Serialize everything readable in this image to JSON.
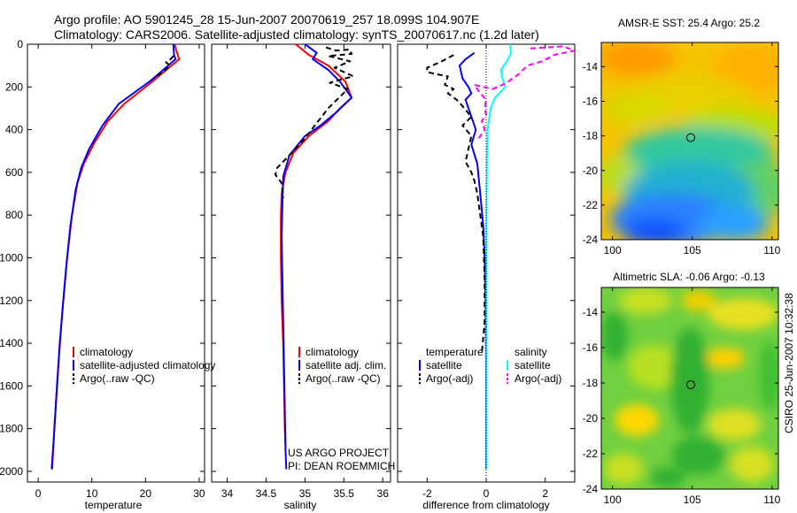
{
  "header": {
    "line1": "Argo profile: AO 5901245_28 15-Jun-2007 20070619_257 18.099S 104.907E",
    "line2": "Climatology: CARS2006. Satellite-adjusted climatology: synTS_20070617.nc (1.2d later)"
  },
  "side_label": "CSIRO 25-Jun-2007 10:32:38",
  "colors": {
    "climatology": "#ff0000",
    "satellite": "#0000ff",
    "argo": "#000000",
    "sal_satellite": "#00ffff",
    "sal_argo": "#ff00ff"
  },
  "chart_data": [
    {
      "id": "temperature",
      "type": "line",
      "xlabel": "temperature",
      "xlim": [
        -2,
        31
      ],
      "ylim": [
        2050,
        0
      ],
      "xticks": [
        0,
        10,
        20,
        30
      ],
      "yticks": [
        0,
        200,
        400,
        600,
        800,
        1000,
        1200,
        1400,
        1600,
        1800,
        2000
      ],
      "legend": [
        "climatology",
        "satellite-adjusted climatology",
        "Argo(..raw -QC)"
      ],
      "series": [
        {
          "name": "climatology",
          "style": "solid",
          "color": "#ff0000",
          "points": [
            [
              25.4,
              0
            ],
            [
              26.0,
              50
            ],
            [
              26.3,
              70
            ],
            [
              21,
              180
            ],
            [
              16,
              280
            ],
            [
              13,
              360
            ],
            [
              10.5,
              460
            ],
            [
              8.5,
              560
            ],
            [
              7.3,
              650
            ],
            [
              6.3,
              800
            ],
            [
              5.4,
              1000
            ],
            [
              4.7,
              1200
            ],
            [
              4.0,
              1400
            ],
            [
              3.5,
              1600
            ],
            [
              3.0,
              1800
            ],
            [
              2.6,
              1990
            ]
          ]
        },
        {
          "name": "satellite-adjusted climatology",
          "style": "solid",
          "color": "#0000ff",
          "points": [
            [
              25.2,
              0
            ],
            [
              25.3,
              50
            ],
            [
              25.6,
              70
            ],
            [
              21,
              170
            ],
            [
              15,
              280
            ],
            [
              12,
              380
            ],
            [
              9.5,
              490
            ],
            [
              8,
              580
            ],
            [
              7.0,
              680
            ],
            [
              6.0,
              850
            ],
            [
              5.2,
              1050
            ],
            [
              4.5,
              1250
            ],
            [
              3.9,
              1450
            ],
            [
              3.4,
              1650
            ],
            [
              2.9,
              1850
            ],
            [
              2.5,
              1990
            ]
          ]
        },
        {
          "name": "Argo(..raw -QC)",
          "style": "dashed",
          "color": "#000000",
          "points": [
            [
              25.2,
              55
            ],
            [
              24.5,
              75
            ],
            [
              23.8,
              85
            ],
            [
              24.6,
              100
            ],
            [
              23.5,
              125
            ],
            [
              22,
              150
            ]
          ]
        }
      ]
    },
    {
      "id": "salinity",
      "type": "line",
      "xlabel": "salinity",
      "xlim": [
        33.8,
        36.1
      ],
      "ylim": [
        2050,
        0
      ],
      "xticks": [
        34,
        34.5,
        35,
        35.5,
        36
      ],
      "legend": [
        "climatology",
        "satellite adj. clim.",
        "Argo(..raw -QC)"
      ],
      "annotations": [
        "US ARGO PROJECT",
        "PI: DEAN ROEMMICH"
      ],
      "series": [
        {
          "name": "climatology",
          "style": "solid",
          "color": "#ff0000",
          "points": [
            [
              34.88,
              0
            ],
            [
              35.05,
              50
            ],
            [
              35.3,
              100
            ],
            [
              35.52,
              175
            ],
            [
              35.6,
              250
            ],
            [
              35.45,
              300
            ],
            [
              35.3,
              360
            ],
            [
              35.05,
              430
            ],
            [
              34.85,
              510
            ],
            [
              34.75,
              600
            ],
            [
              34.7,
              700
            ],
            [
              34.69,
              800
            ],
            [
              34.69,
              1000
            ],
            [
              34.7,
              1200
            ],
            [
              34.72,
              1400
            ],
            [
              34.73,
              1600
            ],
            [
              34.74,
              1800
            ],
            [
              34.75,
              1880
            ]
          ]
        },
        {
          "name": "satellite adj. clim.",
          "style": "solid",
          "color": "#0000ff",
          "points": [
            [
              35.0,
              0
            ],
            [
              35.15,
              40
            ],
            [
              35.1,
              70
            ],
            [
              35.3,
              120
            ],
            [
              35.45,
              175
            ],
            [
              35.6,
              250
            ],
            [
              35.4,
              320
            ],
            [
              35.2,
              380
            ],
            [
              35.0,
              430
            ],
            [
              34.8,
              520
            ],
            [
              34.72,
              620
            ],
            [
              34.71,
              750
            ],
            [
              34.7,
              900
            ],
            [
              34.71,
              1100
            ],
            [
              34.72,
              1300
            ],
            [
              34.73,
              1500
            ],
            [
              34.74,
              1700
            ],
            [
              34.75,
              1900
            ],
            [
              34.76,
              1990
            ]
          ]
        },
        {
          "name": "Argo(..raw -QC)",
          "style": "dashed",
          "color": "#000000",
          "points": [
            [
              35.27,
              15
            ],
            [
              35.4,
              30
            ],
            [
              35.57,
              25
            ],
            [
              35.6,
              45
            ],
            [
              35.3,
              55
            ],
            [
              35.58,
              80
            ],
            [
              35.38,
              110
            ],
            [
              35.62,
              150
            ],
            [
              35.32,
              180
            ],
            [
              35.55,
              210
            ],
            [
              35.3,
              300
            ],
            [
              35.0,
              440
            ],
            [
              34.8,
              520
            ],
            [
              34.64,
              580
            ],
            [
              34.62,
              610
            ],
            [
              34.7,
              650
            ],
            [
              34.72,
              720
            ]
          ]
        }
      ]
    },
    {
      "id": "difference",
      "type": "line",
      "xlabel": "difference from climatology",
      "xlim": [
        -3.0,
        3.0
      ],
      "ylim": [
        2050,
        0
      ],
      "xticks": [
        -2,
        0,
        2
      ],
      "legend_headers": [
        "temperature",
        "salinity"
      ],
      "legend": [
        "satellite",
        "Argo(-adj)",
        "satellite",
        "Argo(-adj)"
      ],
      "series": [
        {
          "name": "temperature satellite",
          "style": "solid",
          "color": "#0000ff",
          "points": [
            [
              -0.4,
              40
            ],
            [
              -0.7,
              70
            ],
            [
              -0.9,
              100
            ],
            [
              -0.8,
              160
            ],
            [
              -0.6,
              200
            ],
            [
              -0.5,
              230
            ],
            [
              -0.7,
              260
            ],
            [
              -0.55,
              320
            ],
            [
              -0.35,
              400
            ],
            [
              -0.5,
              470
            ],
            [
              -0.3,
              560
            ],
            [
              -0.2,
              700
            ],
            [
              -0.1,
              850
            ],
            [
              -0.05,
              1000
            ],
            [
              -0.02,
              1200
            ],
            [
              0,
              1500
            ],
            [
              0,
              1800
            ],
            [
              0,
              1990
            ]
          ]
        },
        {
          "name": "temperature Argo(-adj)",
          "style": "dashed",
          "color": "#000000",
          "points": [
            [
              -1.1,
              50
            ],
            [
              -1.5,
              80
            ],
            [
              -2.0,
              110
            ],
            [
              -2.0,
              130
            ],
            [
              -1.7,
              140
            ],
            [
              -1.3,
              150
            ],
            [
              -1.4,
              190
            ],
            [
              -1.1,
              210
            ],
            [
              -1.3,
              230
            ],
            [
              -1.0,
              260
            ],
            [
              -0.8,
              290
            ],
            [
              -0.5,
              340
            ],
            [
              -0.8,
              380
            ],
            [
              -0.5,
              430
            ],
            [
              -0.6,
              490
            ],
            [
              -0.7,
              550
            ],
            [
              -0.5,
              600
            ],
            [
              -0.4,
              640
            ],
            [
              -0.3,
              700
            ],
            [
              -0.2,
              800
            ],
            [
              -0.1,
              900
            ],
            [
              -0.05,
              1100
            ],
            [
              -0.05,
              1300
            ],
            [
              -0.15,
              1450
            ]
          ]
        },
        {
          "name": "salinity satellite",
          "style": "solid",
          "color": "#00ffff",
          "points": [
            [
              0.8,
              0
            ],
            [
              0.85,
              40
            ],
            [
              0.7,
              80
            ],
            [
              0.5,
              120
            ],
            [
              0.55,
              160
            ],
            [
              0.65,
              200
            ],
            [
              0.3,
              250
            ],
            [
              0.15,
              300
            ],
            [
              0.1,
              350
            ],
            [
              0.05,
              400
            ],
            [
              0.03,
              500
            ],
            [
              0.02,
              600
            ],
            [
              0.01,
              800
            ],
            [
              0.01,
              1000
            ],
            [
              0.01,
              1500
            ],
            [
              0.01,
              1990
            ]
          ]
        },
        {
          "name": "salinity Argo(-adj)",
          "style": "dashed",
          "color": "#ff00ff",
          "points": [
            [
              1.5,
              20
            ],
            [
              2.6,
              10
            ],
            [
              3.0,
              30
            ],
            [
              2.3,
              50
            ],
            [
              1.9,
              80
            ],
            [
              1.4,
              100
            ],
            [
              1.1,
              140
            ],
            [
              0.7,
              180
            ],
            [
              0.4,
              200
            ],
            [
              0.2,
              210
            ],
            [
              -0.4,
              190
            ],
            [
              -0.2,
              230
            ],
            [
              0.0,
              260
            ],
            [
              -0.05,
              300
            ],
            [
              0.0,
              330
            ],
            [
              -0.15,
              360
            ],
            [
              -0.05,
              400
            ],
            [
              -0.3,
              450
            ]
          ]
        }
      ]
    },
    {
      "id": "sst_map",
      "type": "heatmap",
      "title": "AMSR-E SST: 25.4 Argo: 25.2",
      "xlim": [
        99.3,
        110.4
      ],
      "ylim": [
        -24,
        -12.6
      ],
      "xticks": [
        100,
        105,
        110
      ],
      "yticks": [
        -14,
        -16,
        -18,
        -20,
        -22,
        -24
      ],
      "marker": [
        104.907,
        -18.099
      ]
    },
    {
      "id": "sla_map",
      "type": "heatmap",
      "title": "Altimetric SLA: -0.06 Argo: -0.13",
      "xlim": [
        99.3,
        110.4
      ],
      "ylim": [
        -24,
        -12.6
      ],
      "xticks": [
        100,
        105,
        110
      ],
      "yticks": [
        -14,
        -16,
        -18,
        -20,
        -22,
        -24
      ],
      "marker": [
        104.907,
        -18.099
      ]
    }
  ]
}
